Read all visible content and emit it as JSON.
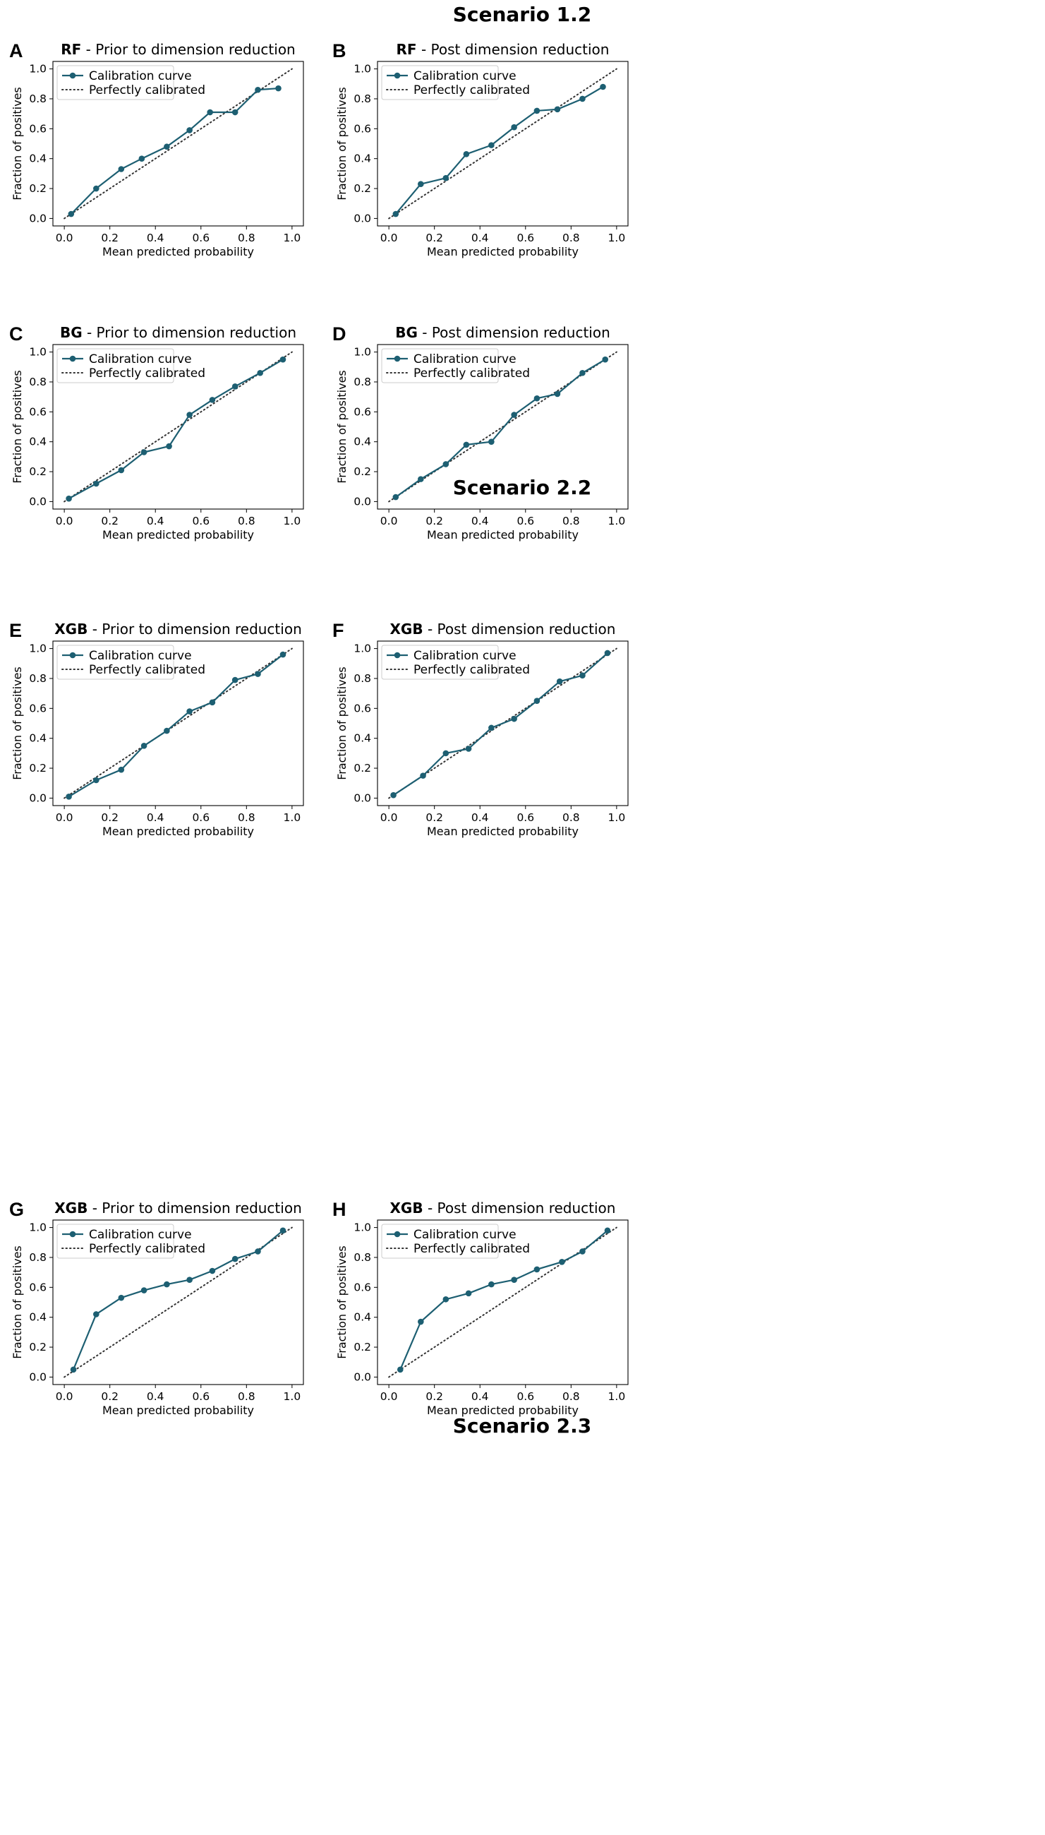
{
  "scenario_titles": [
    "Scenario 1.2",
    "Scenario 2.2",
    "Scenario 2.3"
  ],
  "colors": {
    "curve": "#1d5f72",
    "reference": "#333333",
    "frame": "#000000"
  },
  "chart_data": [
    {
      "panel": "A",
      "type": "line",
      "model": "RF",
      "title_suffix": " - Prior to dimension reduction",
      "xlabel": "Mean predicted probability",
      "ylabel": "Fraction of positives",
      "xlim": [
        -0.05,
        1.05
      ],
      "ylim": [
        -0.05,
        1.05
      ],
      "xticks": [
        "0.0",
        "0.2",
        "0.4",
        "0.6",
        "0.8",
        "1.0"
      ],
      "yticks": [
        "0.0",
        "0.2",
        "0.4",
        "0.6",
        "0.8",
        "1.0"
      ],
      "legend": [
        "Calibration curve",
        "Perfectly calibrated"
      ],
      "legend_position": "upper-left",
      "series": [
        {
          "name": "Calibration curve",
          "x": [
            0.03,
            0.14,
            0.25,
            0.34,
            0.45,
            0.55,
            0.64,
            0.75,
            0.85,
            0.94
          ],
          "y": [
            0.03,
            0.2,
            0.33,
            0.4,
            0.48,
            0.59,
            0.71,
            0.71,
            0.86,
            0.87
          ]
        },
        {
          "name": "Perfectly calibrated",
          "x": [
            0,
            1
          ],
          "y": [
            0,
            1
          ]
        }
      ]
    },
    {
      "panel": "B",
      "type": "line",
      "model": "RF",
      "title_suffix": " - Post dimension reduction",
      "xlabel": "Mean predicted probability",
      "ylabel": "Fraction of positives",
      "xlim": [
        -0.05,
        1.05
      ],
      "ylim": [
        -0.05,
        1.05
      ],
      "xticks": [
        "0.0",
        "0.2",
        "0.4",
        "0.6",
        "0.8",
        "1.0"
      ],
      "yticks": [
        "0.0",
        "0.2",
        "0.4",
        "0.6",
        "0.8",
        "1.0"
      ],
      "legend": [
        "Calibration curve",
        "Perfectly calibrated"
      ],
      "legend_position": "upper-left",
      "series": [
        {
          "name": "Calibration curve",
          "x": [
            0.03,
            0.14,
            0.25,
            0.34,
            0.45,
            0.55,
            0.65,
            0.74,
            0.85,
            0.94
          ],
          "y": [
            0.03,
            0.23,
            0.27,
            0.43,
            0.49,
            0.61,
            0.72,
            0.73,
            0.8,
            0.88
          ]
        },
        {
          "name": "Perfectly calibrated",
          "x": [
            0,
            1
          ],
          "y": [
            0,
            1
          ]
        }
      ]
    },
    {
      "panel": "C",
      "type": "line",
      "model": "BG",
      "title_suffix": " - Prior to dimension reduction",
      "xlabel": "Mean predicted probability",
      "ylabel": "Fraction of positives",
      "xlim": [
        -0.05,
        1.05
      ],
      "ylim": [
        -0.05,
        1.05
      ],
      "xticks": [
        "0.0",
        "0.2",
        "0.4",
        "0.6",
        "0.8",
        "1.0"
      ],
      "yticks": [
        "0.0",
        "0.2",
        "0.4",
        "0.6",
        "0.8",
        "1.0"
      ],
      "legend": [
        "Calibration curve",
        "Perfectly calibrated"
      ],
      "legend_position": "upper-left",
      "series": [
        {
          "name": "Calibration curve",
          "x": [
            0.02,
            0.14,
            0.25,
            0.35,
            0.46,
            0.55,
            0.65,
            0.75,
            0.86,
            0.96
          ],
          "y": [
            0.02,
            0.12,
            0.21,
            0.33,
            0.37,
            0.58,
            0.68,
            0.77,
            0.86,
            0.95
          ]
        },
        {
          "name": "Perfectly calibrated",
          "x": [
            0,
            1
          ],
          "y": [
            0,
            1
          ]
        }
      ]
    },
    {
      "panel": "D",
      "type": "line",
      "model": "BG",
      "title_suffix": " - Post dimension reduction",
      "xlabel": "Mean predicted probability",
      "ylabel": "Fraction of positives",
      "xlim": [
        -0.05,
        1.05
      ],
      "ylim": [
        -0.05,
        1.05
      ],
      "xticks": [
        "0.0",
        "0.2",
        "0.4",
        "0.6",
        "0.8",
        "1.0"
      ],
      "yticks": [
        "0.0",
        "0.2",
        "0.4",
        "0.6",
        "0.8",
        "1.0"
      ],
      "legend": [
        "Calibration curve",
        "Perfectly calibrated"
      ],
      "legend_position": "upper-left",
      "series": [
        {
          "name": "Calibration curve",
          "x": [
            0.03,
            0.14,
            0.25,
            0.34,
            0.45,
            0.55,
            0.65,
            0.74,
            0.85,
            0.95
          ],
          "y": [
            0.03,
            0.15,
            0.25,
            0.38,
            0.4,
            0.58,
            0.69,
            0.72,
            0.86,
            0.95
          ]
        },
        {
          "name": "Perfectly calibrated",
          "x": [
            0,
            1
          ],
          "y": [
            0,
            1
          ]
        }
      ]
    },
    {
      "panel": "E",
      "type": "line",
      "model": "XGB",
      "title_suffix": " - Prior to dimension reduction",
      "xlabel": "Mean predicted probability",
      "ylabel": "Fraction of positives",
      "xlim": [
        -0.05,
        1.05
      ],
      "ylim": [
        -0.05,
        1.05
      ],
      "xticks": [
        "0.0",
        "0.2",
        "0.4",
        "0.6",
        "0.8",
        "1.0"
      ],
      "yticks": [
        "0.0",
        "0.2",
        "0.4",
        "0.6",
        "0.8",
        "1.0"
      ],
      "legend": [
        "Calibration curve",
        "Perfectly calibrated"
      ],
      "legend_position": "upper-left",
      "series": [
        {
          "name": "Calibration curve",
          "x": [
            0.02,
            0.14,
            0.25,
            0.35,
            0.45,
            0.55,
            0.65,
            0.75,
            0.85,
            0.96
          ],
          "y": [
            0.01,
            0.12,
            0.19,
            0.35,
            0.45,
            0.58,
            0.64,
            0.79,
            0.83,
            0.96
          ]
        },
        {
          "name": "Perfectly calibrated",
          "x": [
            0,
            1
          ],
          "y": [
            0,
            1
          ]
        }
      ]
    },
    {
      "panel": "F",
      "type": "line",
      "model": "XGB",
      "title_suffix": " - Post dimension reduction",
      "xlabel": "Mean predicted probability",
      "ylabel": "Fraction of positives",
      "xlim": [
        -0.05,
        1.05
      ],
      "ylim": [
        -0.05,
        1.05
      ],
      "xticks": [
        "0.0",
        "0.2",
        "0.4",
        "0.6",
        "0.8",
        "1.0"
      ],
      "yticks": [
        "0.0",
        "0.2",
        "0.4",
        "0.6",
        "0.8",
        "1.0"
      ],
      "legend": [
        "Calibration curve",
        "Perfectly calibrated"
      ],
      "legend_position": "upper-left",
      "series": [
        {
          "name": "Calibration curve",
          "x": [
            0.02,
            0.15,
            0.25,
            0.35,
            0.45,
            0.55,
            0.65,
            0.75,
            0.85,
            0.96
          ],
          "y": [
            0.02,
            0.15,
            0.3,
            0.33,
            0.47,
            0.53,
            0.65,
            0.78,
            0.82,
            0.97
          ]
        },
        {
          "name": "Perfectly calibrated",
          "x": [
            0,
            1
          ],
          "y": [
            0,
            1
          ]
        }
      ]
    },
    {
      "panel": "G",
      "type": "line",
      "model": "XGB",
      "title_suffix": " - Prior to dimension reduction",
      "xlabel": "Mean predicted probability",
      "ylabel": "Fraction of positives",
      "xlim": [
        -0.05,
        1.05
      ],
      "ylim": [
        -0.05,
        1.05
      ],
      "xticks": [
        "0.0",
        "0.2",
        "0.4",
        "0.6",
        "0.8",
        "1.0"
      ],
      "yticks": [
        "0.0",
        "0.2",
        "0.4",
        "0.6",
        "0.8",
        "1.0"
      ],
      "legend": [
        "Calibration curve",
        "Perfectly calibrated"
      ],
      "legend_position": "upper-left",
      "series": [
        {
          "name": "Calibration curve",
          "x": [
            0.04,
            0.14,
            0.25,
            0.35,
            0.45,
            0.55,
            0.65,
            0.75,
            0.85,
            0.96
          ],
          "y": [
            0.05,
            0.42,
            0.53,
            0.58,
            0.62,
            0.65,
            0.71,
            0.79,
            0.84,
            0.98
          ]
        },
        {
          "name": "Perfectly calibrated",
          "x": [
            0,
            1
          ],
          "y": [
            0,
            1
          ]
        }
      ]
    },
    {
      "panel": "H",
      "type": "line",
      "model": "XGB",
      "title_suffix": " - Post dimension reduction",
      "xlabel": "Mean predicted probability",
      "ylabel": "Fraction of positives",
      "xlim": [
        -0.05,
        1.05
      ],
      "ylim": [
        -0.05,
        1.05
      ],
      "xticks": [
        "0.0",
        "0.2",
        "0.4",
        "0.6",
        "0.8",
        "1.0"
      ],
      "yticks": [
        "0.0",
        "0.2",
        "0.4",
        "0.6",
        "0.8",
        "1.0"
      ],
      "legend": [
        "Calibration curve",
        "Perfectly calibrated"
      ],
      "legend_position": "upper-left",
      "series": [
        {
          "name": "Calibration curve",
          "x": [
            0.05,
            0.14,
            0.25,
            0.35,
            0.45,
            0.55,
            0.65,
            0.76,
            0.85,
            0.96
          ],
          "y": [
            0.05,
            0.37,
            0.52,
            0.56,
            0.62,
            0.65,
            0.72,
            0.77,
            0.84,
            0.98
          ]
        },
        {
          "name": "Perfectly calibrated",
          "x": [
            0,
            1
          ],
          "y": [
            0,
            1
          ]
        }
      ]
    }
  ]
}
